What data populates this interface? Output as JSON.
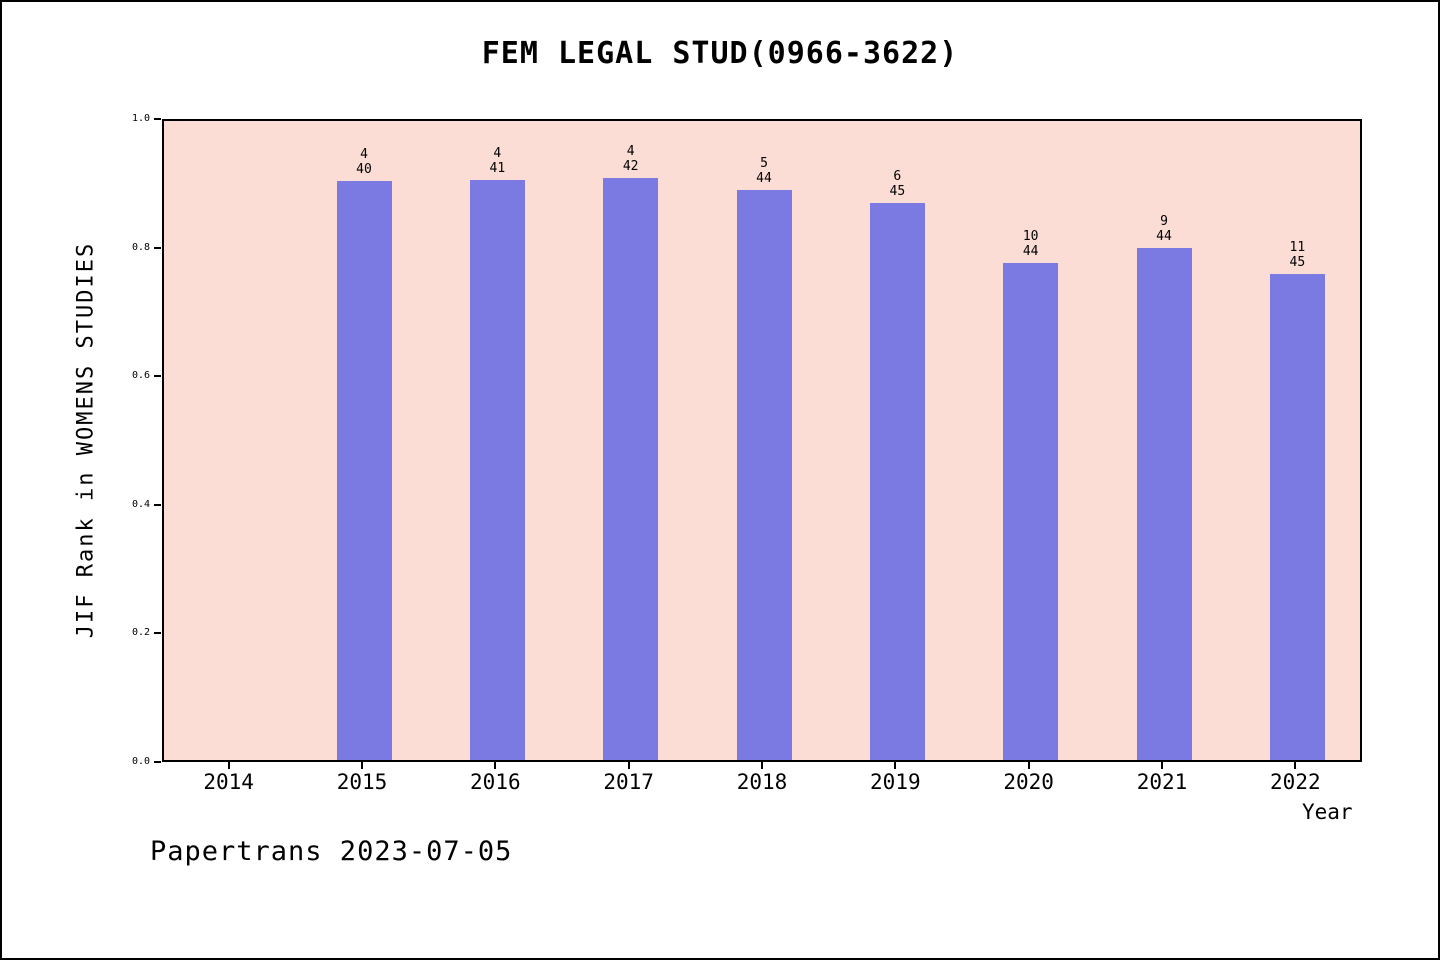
{
  "footer": {
    "text": "Papertrans 2023-07-05"
  },
  "chart_data": {
    "type": "bar",
    "title": "FEM LEGAL STUD(0966-3622)",
    "xlabel": "Year",
    "ylabel": "JIF Rank in WOMENS STUDIES",
    "categories": [
      2014,
      2015,
      2016,
      2017,
      2018,
      2019,
      2020,
      2021,
      2022
    ],
    "bars": [
      {
        "year": 2015,
        "rank": 4,
        "total": 40,
        "value": 0.9
      },
      {
        "year": 2016,
        "rank": 4,
        "total": 41,
        "value": 0.9024
      },
      {
        "year": 2017,
        "rank": 4,
        "total": 42,
        "value": 0.9048
      },
      {
        "year": 2018,
        "rank": 5,
        "total": 44,
        "value": 0.8864
      },
      {
        "year": 2019,
        "rank": 6,
        "total": 45,
        "value": 0.8667
      },
      {
        "year": 2020,
        "rank": 10,
        "total": 44,
        "value": 0.7727
      },
      {
        "year": 2021,
        "rank": 9,
        "total": 44,
        "value": 0.7955
      },
      {
        "year": 2022,
        "rank": 11,
        "total": 45,
        "value": 0.7556
      }
    ],
    "ylim": [
      0.0,
      1.0
    ],
    "yticks": [
      "0.0",
      "0.2",
      "0.4",
      "0.6",
      "0.8",
      "1.0"
    ],
    "grid": "off",
    "legend": "none",
    "plot_bg": "#fbddd6",
    "bar_color": "#7b7ae3"
  }
}
